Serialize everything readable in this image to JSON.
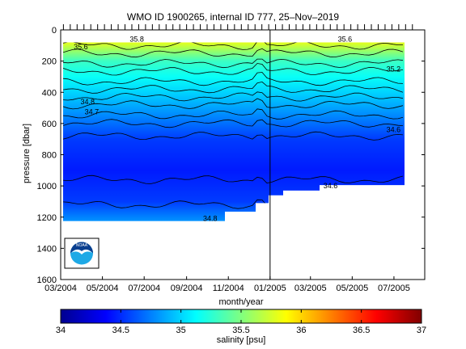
{
  "chart_data": {
    "type": "heatmap",
    "title": "WMO ID 1900265, internal ID 777, 25–Nov–2019",
    "xlabel": "month/year",
    "ylabel": "pressure [dbar]",
    "x_ticks": [
      "03/2004",
      "05/2004",
      "07/2004",
      "09/2004",
      "11/2004",
      "01/2005",
      "03/2005",
      "05/2005",
      "07/2005"
    ],
    "y_ticks": [
      0,
      200,
      400,
      600,
      800,
      1000,
      1200,
      1400,
      1600
    ],
    "ylim": [
      0,
      1600
    ],
    "y_reversed": true,
    "xlim": [
      "2004-03-01",
      "2005-08-15"
    ],
    "marker_date": "2005-01-01",
    "colorbar": {
      "label": "salinity [psu]",
      "range": [
        34,
        37
      ],
      "ticks": [
        "34",
        "34.5",
        "35",
        "35.5",
        "36",
        "36.5",
        "37"
      ],
      "colormap": "jet"
    },
    "depth_profile": {
      "pressure": [
        80,
        200,
        300,
        400,
        500,
        600,
        700,
        900,
        1100,
        1220
      ],
      "salinity": [
        35.8,
        35.3,
        35.15,
        35.0,
        34.85,
        34.7,
        34.55,
        34.45,
        34.55,
        34.8
      ]
    },
    "contour_labels": [
      {
        "text": "35.8",
        "date": "2004-06-10",
        "pressure": 60
      },
      {
        "text": "35.6",
        "date": "2004-03-20",
        "pressure": 110
      },
      {
        "text": "35.6",
        "date": "2005-04-10",
        "pressure": 60
      },
      {
        "text": "35.2",
        "date": "2005-06-20",
        "pressure": 250
      },
      {
        "text": "34.8",
        "date": "2004-03-30",
        "pressure": 460
      },
      {
        "text": "34.7",
        "date": "2004-04-05",
        "pressure": 525
      },
      {
        "text": "34.6",
        "date": "2005-06-20",
        "pressure": 640
      },
      {
        "text": "34.6",
        "date": "2005-03-20",
        "pressure": 1000
      },
      {
        "text": "34.8",
        "date": "2004-09-25",
        "pressure": 1210
      }
    ]
  },
  "logo": {
    "text": "NOAA",
    "colors": {
      "sky": "#0a3f8f",
      "water": "#1ea9e6",
      "bird": "#ffffff"
    }
  }
}
